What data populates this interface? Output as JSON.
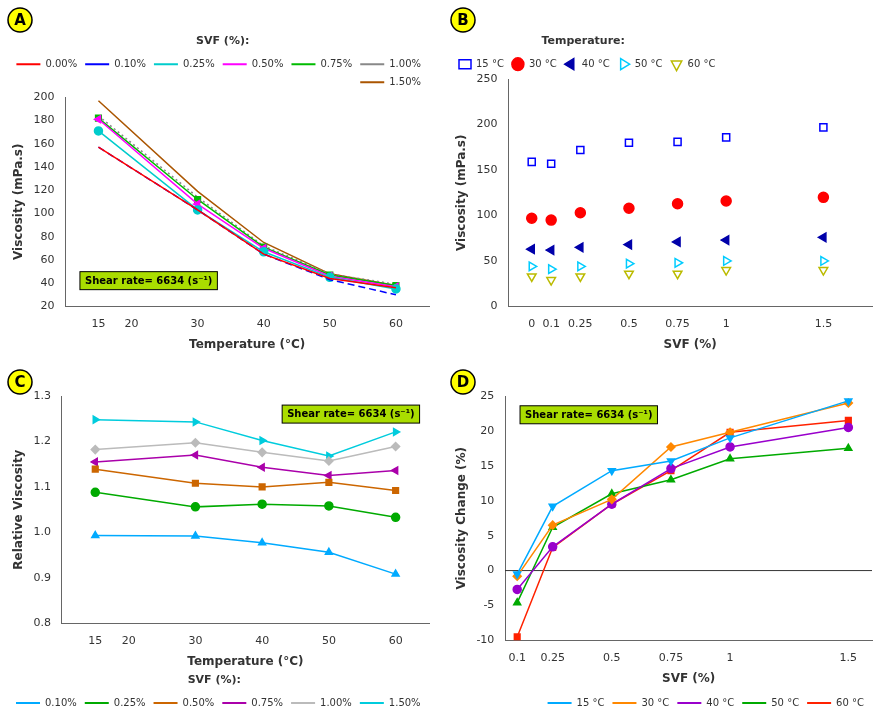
{
  "chart_data": [
    {
      "type": "line",
      "panel_label": {
        "text": "A",
        "color": "#FFFF00"
      },
      "xlabel": "Temperature (°C)",
      "ylabel": "Viscosity (mPa.s)",
      "x": [
        15,
        30,
        40,
        50,
        60
      ],
      "series": [
        {
          "name": "0.00%",
          "color": "#FF0000",
          "line_style": "solid",
          "marker": "none",
          "values": [
            157,
            103,
            65,
            44,
            36
          ]
        },
        {
          "name": "0.10%",
          "color": "#0000FF",
          "line_style": "dashed",
          "marker": "none",
          "values": [
            157,
            103,
            65,
            43,
            30
          ]
        },
        {
          "name": "0.25%",
          "color": "#00CCCC",
          "line_style": "solid",
          "marker": "circle",
          "values": [
            171,
            103,
            67,
            45,
            35
          ]
        },
        {
          "name": "0.50%",
          "color": "#FF00FF",
          "line_style": "solid",
          "marker": "triangle-left",
          "values": [
            181,
            108,
            70,
            46,
            37
          ]
        },
        {
          "name": "0.75%",
          "color": "#00BB00",
          "line_style": "solid",
          "marker": "square",
          "values": [
            182,
            112,
            71,
            47,
            38
          ]
        },
        {
          "name": "1.00%",
          "color": "#888888",
          "line_style": "dotted",
          "marker": "none",
          "values": [
            184,
            114,
            72,
            48,
            39
          ]
        },
        {
          "name": "1.50%",
          "color": "#AA5500",
          "line_style": "solid",
          "marker": "none",
          "values": [
            197,
            119,
            75,
            48,
            38
          ]
        }
      ],
      "xlim": [
        10,
        65
      ],
      "xticks": [
        15,
        20,
        30,
        40,
        50,
        60
      ],
      "ylim": [
        20,
        200
      ],
      "yticks": [
        20,
        40,
        60,
        80,
        100,
        120,
        140,
        160,
        180,
        200
      ],
      "grid": false,
      "legend": "upper right",
      "legend_title": "SVF (%):",
      "annotations": [
        {
          "text": "Shear rate= 6634 (s⁻¹)",
          "color": "#AADD00"
        }
      ]
    },
    {
      "type": "scatter",
      "panel_label": {
        "text": "B",
        "color": "#FFFF00"
      },
      "xlabel": "SVF (%)",
      "ylabel": "Viscosity (mPa.s)",
      "x": [
        0,
        0.1,
        0.25,
        0.5,
        0.75,
        1.0,
        1.5
      ],
      "series": [
        {
          "name": "15 °C",
          "color": "#0000FF",
          "marker": "square-open",
          "values": [
            159,
            157,
            172,
            180,
            181,
            186,
            197
          ]
        },
        {
          "name": "30 °C",
          "color": "#FF0000",
          "marker": "circle",
          "values": [
            97,
            95,
            103,
            108,
            113,
            116,
            120
          ]
        },
        {
          "name": "40 °C",
          "color": "#0000AA",
          "marker": "triangle-left",
          "values": [
            63,
            62,
            65,
            68,
            71,
            73,
            76
          ]
        },
        {
          "name": "50 °C",
          "color": "#00CCFF",
          "marker": "triangle-right-open",
          "values": [
            44,
            41,
            44,
            47,
            48,
            50,
            50
          ]
        },
        {
          "name": "60 °C",
          "color": "#BBBB00",
          "marker": "triangle-down-open",
          "values": [
            33,
            29,
            33,
            36,
            36,
            40,
            40
          ]
        }
      ],
      "xlim": [
        -0.12,
        1.75
      ],
      "xticks": [
        0,
        0.1,
        0.25,
        0.5,
        0.75,
        1,
        1.5
      ],
      "ylim": [
        0,
        250
      ],
      "yticks": [
        0,
        50,
        100,
        150,
        200,
        250
      ],
      "grid": false,
      "legend": "upper left",
      "legend_title": "Temperature:",
      "annotations": []
    },
    {
      "type": "line",
      "panel_label": {
        "text": "C",
        "color": "#FFFF00"
      },
      "xlabel": "Temperature (°C)",
      "ylabel": "Relative Viscosity",
      "x": [
        15,
        30,
        40,
        50,
        60
      ],
      "series": [
        {
          "name": "0.10%",
          "color": "#00AAFF",
          "line_style": "solid",
          "marker": "triangle-up",
          "values": [
            0.993,
            0.992,
            0.977,
            0.956,
            0.908
          ]
        },
        {
          "name": "0.25%",
          "color": "#00AA00",
          "line_style": "solid",
          "marker": "circle",
          "values": [
            1.088,
            1.056,
            1.062,
            1.058,
            1.033
          ]
        },
        {
          "name": "0.50%",
          "color": "#CC6600",
          "line_style": "solid",
          "marker": "square",
          "values": [
            1.139,
            1.108,
            1.1,
            1.11,
            1.092
          ]
        },
        {
          "name": "0.75%",
          "color": "#AA00AA",
          "line_style": "solid",
          "marker": "triangle-left",
          "values": [
            1.155,
            1.17,
            1.143,
            1.125,
            1.136
          ]
        },
        {
          "name": "1.00%",
          "color": "#BBBBBB",
          "line_style": "solid",
          "marker": "diamond",
          "values": [
            1.182,
            1.197,
            1.176,
            1.157,
            1.189
          ]
        },
        {
          "name": "1.50%",
          "color": "#00CCDD",
          "line_style": "solid",
          "marker": "triangle-right",
          "values": [
            1.248,
            1.243,
            1.202,
            1.168,
            1.221
          ]
        }
      ],
      "xlim": [
        10,
        65
      ],
      "xticks": [
        15,
        20,
        30,
        40,
        50,
        60
      ],
      "ylim": [
        0.8,
        1.3
      ],
      "yticks": [
        0.8,
        0.9,
        {
          "value": 1.0,
          "label": "1.0"
        },
        1.1,
        1.2,
        1.3
      ],
      "grid": false,
      "legend": "lower left",
      "legend_title": "SVF (%):",
      "annotations": [
        {
          "text": "Shear rate= 6634 (s⁻¹)",
          "color": "#AADD00"
        }
      ]
    },
    {
      "type": "line",
      "panel_label": {
        "text": "D",
        "color": "#FFFF00"
      },
      "xlabel": "SVF (%)",
      "ylabel": "Viscosity Change (%)",
      "x": [
        0.1,
        0.25,
        0.5,
        0.75,
        1.0,
        1.5
      ],
      "series": [
        {
          "name": "15 °C",
          "color": "#00AAFF",
          "line_style": "solid",
          "marker": "triangle-down",
          "values": [
            -0.5,
            9.2,
            14.3,
            15.7,
            19.0,
            24.3
          ]
        },
        {
          "name": "30 °C",
          "color": "#FF8800",
          "line_style": "solid",
          "marker": "diamond",
          "values": [
            -0.8,
            6.5,
            10.2,
            17.7,
            19.8,
            24.0
          ]
        },
        {
          "name": "40 °C",
          "color": "#9900CC",
          "line_style": "solid",
          "marker": "circle",
          "values": [
            -2.7,
            3.4,
            9.5,
            14.6,
            17.7,
            20.5
          ]
        },
        {
          "name": "50 °C",
          "color": "#00AA00",
          "line_style": "solid",
          "marker": "triangle-up",
          "values": [
            -4.6,
            6.2,
            11.0,
            13.0,
            16.0,
            17.5
          ]
        },
        {
          "name": "60 °C",
          "color": "#FF2200",
          "line_style": "solid",
          "marker": "square",
          "values": [
            -9.5,
            3.3,
            9.5,
            14.3,
            19.8,
            21.5
          ]
        }
      ],
      "xlim": [
        0.05,
        1.6
      ],
      "xticks": [
        0.1,
        0.25,
        0.5,
        0.75,
        1,
        1.5
      ],
      "ylim": [
        -10,
        25
      ],
      "yticks": [
        -10,
        -5,
        0,
        5,
        10,
        15,
        20,
        25
      ],
      "hlines": [
        0
      ],
      "grid": false,
      "legend": "lower right",
      "annotations": [
        {
          "text": "Shear rate= 6634 (s⁻¹)",
          "color": "#AADD00"
        }
      ]
    }
  ]
}
